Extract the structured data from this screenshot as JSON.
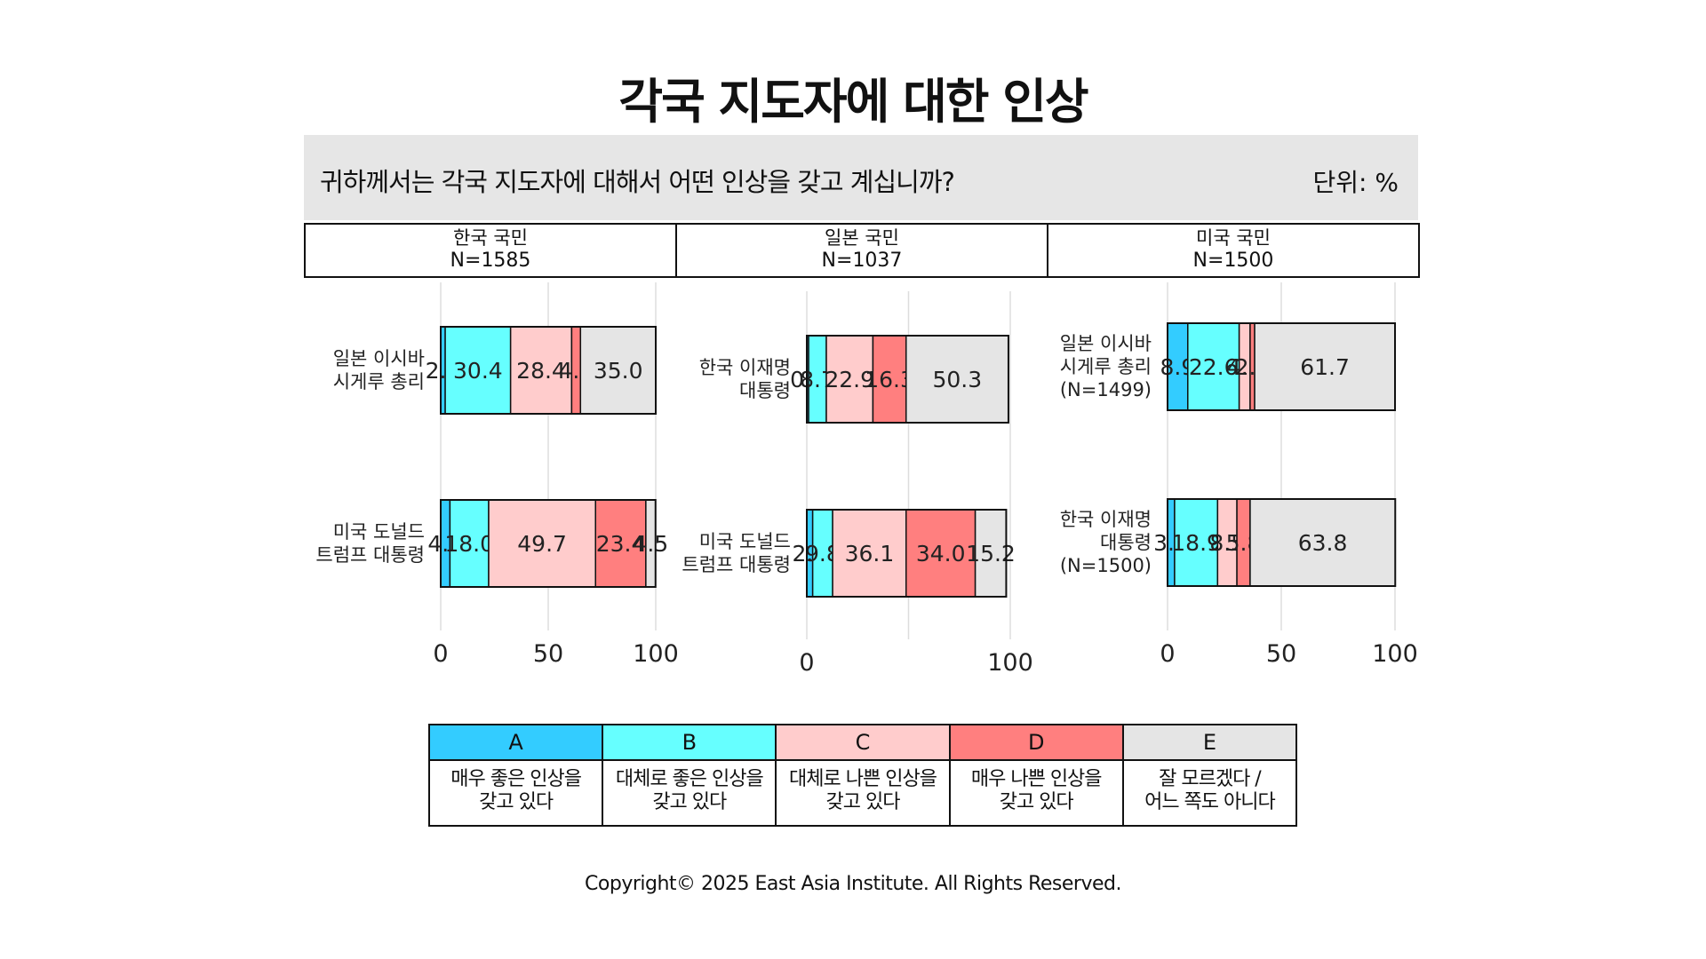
{
  "title": "각국 지도자에 대한 인상",
  "question": "귀하께서는 각국 지도자에 대해서 어떤 인상을 갖고 계십니까?",
  "unit": "단위: %",
  "groups": [
    {
      "name": "한국 국민",
      "n": "N=1585"
    },
    {
      "name": "일본 국민",
      "n": "N=1037"
    },
    {
      "name": "미국 국민",
      "n": "N=1500"
    }
  ],
  "legend": [
    {
      "key": "A",
      "desc1": "매우 좋은 인상을",
      "desc2": "갖고 있다",
      "color": "#33ccff"
    },
    {
      "key": "B",
      "desc1": "대체로 좋은 인상을",
      "desc2": "갖고 있다",
      "color": "#66ffff"
    },
    {
      "key": "C",
      "desc1": "대체로 나쁜 인상을",
      "desc2": "갖고 있다",
      "color": "#ffcccc"
    },
    {
      "key": "D",
      "desc1": "매우 나쁜 인상을",
      "desc2": "갖고 있다",
      "color": "#ff7f7f"
    },
    {
      "key": "E",
      "desc1": "잘 모르겠다 /",
      "desc2": "어느 쪽도 아니다",
      "color": "#e5e5e5"
    }
  ],
  "copyright": "Copyright© 2025 East Asia Institute. All Rights Reserved.",
  "chart_data": [
    {
      "type": "bar",
      "orientation": "horizontal",
      "stacked": true,
      "group": "한국 국민",
      "categories": [
        [
          "일본 이시바",
          "시게루 총리"
        ],
        [
          "미국 도널드",
          "트럼프 대통령"
        ]
      ],
      "series": [
        {
          "name": "A",
          "values": [
            2.1,
            4.3
          ]
        },
        {
          "name": "B",
          "values": [
            30.4,
            18.0
          ]
        },
        {
          "name": "C",
          "values": [
            28.4,
            49.7
          ]
        },
        {
          "name": "D",
          "values": [
            4.1,
            23.4
          ]
        },
        {
          "name": "E",
          "values": [
            35.0,
            4.5
          ]
        }
      ],
      "xlim": [
        0,
        100
      ],
      "xticks": [
        0,
        50,
        100
      ]
    },
    {
      "type": "bar",
      "orientation": "horizontal",
      "stacked": true,
      "group": "일본 국민",
      "categories": [
        [
          "한국 이재명",
          "대통령"
        ],
        [
          "미국 도널드",
          "트럼프 대통령"
        ]
      ],
      "series": [
        {
          "name": "A",
          "values": [
            0.9,
            2.9
          ]
        },
        {
          "name": "B",
          "values": [
            8.7,
            9.8
          ]
        },
        {
          "name": "C",
          "values": [
            22.9,
            36.1
          ]
        },
        {
          "name": "D",
          "values": [
            16.3,
            34.0
          ]
        },
        {
          "name": "E",
          "values": [
            50.3,
            15.2
          ]
        }
      ],
      "xlim": [
        0,
        100
      ],
      "xticks": [
        0,
        100
      ]
    },
    {
      "type": "bar",
      "orientation": "horizontal",
      "stacked": true,
      "group": "미국 국민",
      "categories": [
        [
          "일본 이시바",
          "시게루 총리",
          "(N=1499)"
        ],
        [
          "한국 이재명",
          "대통령",
          "(N=1500)"
        ]
      ],
      "series": [
        {
          "name": "A",
          "values": [
            8.9,
            3.1
          ]
        },
        {
          "name": "B",
          "values": [
            22.6,
            18.9
          ]
        },
        {
          "name": "C",
          "values": [
            4.8,
            8.5
          ]
        },
        {
          "name": "D",
          "values": [
            2.0,
            5.8
          ]
        },
        {
          "name": "E",
          "values": [
            61.7,
            63.8
          ]
        }
      ],
      "xlim": [
        0,
        100
      ],
      "xticks": [
        0,
        50,
        100
      ]
    }
  ]
}
